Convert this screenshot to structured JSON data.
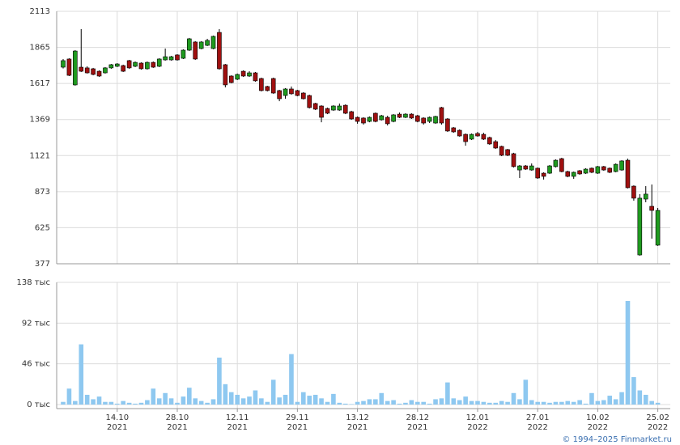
{
  "chart_data": {
    "type": "candlestick",
    "up_color": "#1f9a1f",
    "down_color": "#a01010",
    "grid": true,
    "open": [
      1729,
      1785,
      1607,
      1729,
      1724,
      1718,
      1701,
      1690,
      1724,
      1735,
      1740,
      1774,
      1735,
      1757,
      1718,
      1762,
      1735,
      1779,
      1779,
      1813,
      1790,
      1846,
      1902,
      1857,
      1879,
      1857,
      1968,
      1746,
      1668,
      1646,
      1701,
      1668,
      1690,
      1651,
      1596,
      1651,
      1568,
      1534,
      1579,
      1568,
      1551,
      1534,
      1479,
      1462,
      1445,
      1434,
      1434,
      1467,
      1423,
      1384,
      1379,
      1356,
      1412,
      1367,
      1384,
      1356,
      1406,
      1384,
      1406,
      1395,
      1379,
      1356,
      1345,
      1451,
      1373,
      1312,
      1295,
      1267,
      1234,
      1273,
      1267,
      1245,
      1217,
      1184,
      1162,
      1134,
      1022,
      1050,
      1022,
      1034,
      1000,
      1000,
      1045,
      1100,
      1011,
      978,
      1017,
      1000,
      1034,
      1000,
      1045,
      1034,
      1011,
      1022,
      1089,
      911,
      438,
      822,
      772,
      505
    ],
    "high": [
      1785,
      1790,
      1846,
      1991,
      1735,
      1724,
      1707,
      1729,
      1751,
      1757,
      1746,
      1779,
      1768,
      1762,
      1768,
      1768,
      1790,
      1857,
      1807,
      1818,
      1852,
      1930,
      1908,
      1908,
      1924,
      1946,
      1991,
      1751,
      1673,
      1685,
      1707,
      1701,
      1696,
      1657,
      1601,
      1657,
      1573,
      1585,
      1596,
      1573,
      1557,
      1540,
      1484,
      1467,
      1451,
      1467,
      1479,
      1473,
      1429,
      1390,
      1384,
      1390,
      1417,
      1401,
      1395,
      1406,
      1417,
      1412,
      1412,
      1401,
      1384,
      1390,
      1395,
      1456,
      1379,
      1317,
      1301,
      1273,
      1273,
      1284,
      1278,
      1251,
      1228,
      1189,
      1167,
      1140,
      1056,
      1056,
      1067,
      1039,
      1006,
      1056,
      1095,
      1106,
      1017,
      1011,
      1022,
      1034,
      1039,
      1050,
      1050,
      1039,
      1067,
      1089,
      1100,
      916,
      856,
      911,
      922,
      761
    ],
    "low": [
      1720,
      1668,
      1602,
      1696,
      1685,
      1673,
      1662,
      1685,
      1718,
      1729,
      1696,
      1718,
      1729,
      1712,
      1712,
      1724,
      1729,
      1774,
      1774,
      1774,
      1785,
      1840,
      1779,
      1852,
      1874,
      1852,
      1712,
      1590,
      1618,
      1640,
      1662,
      1662,
      1629,
      1562,
      1562,
      1546,
      1495,
      1512,
      1540,
      1529,
      1507,
      1445,
      1434,
      1350,
      1406,
      1429,
      1429,
      1406,
      1367,
      1340,
      1334,
      1350,
      1350,
      1362,
      1328,
      1350,
      1379,
      1379,
      1373,
      1350,
      1334,
      1345,
      1340,
      1334,
      1284,
      1278,
      1251,
      1189,
      1228,
      1251,
      1228,
      1195,
      1167,
      1117,
      1117,
      1039,
      967,
      1022,
      1017,
      961,
      956,
      995,
      1039,
      1006,
      972,
      961,
      989,
      995,
      1000,
      995,
      1017,
      1000,
      1006,
      1017,
      895,
      811,
      432,
      800,
      550,
      500
    ],
    "close": [
      1774,
      1673,
      1840,
      1701,
      1690,
      1679,
      1668,
      1724,
      1746,
      1751,
      1701,
      1724,
      1762,
      1718,
      1762,
      1729,
      1785,
      1801,
      1801,
      1779,
      1846,
      1924,
      1785,
      1902,
      1913,
      1941,
      1718,
      1607,
      1623,
      1679,
      1668,
      1690,
      1635,
      1568,
      1568,
      1551,
      1512,
      1579,
      1546,
      1534,
      1512,
      1451,
      1440,
      1384,
      1412,
      1462,
      1462,
      1412,
      1373,
      1356,
      1345,
      1384,
      1356,
      1395,
      1340,
      1401,
      1384,
      1406,
      1379,
      1356,
      1345,
      1384,
      1390,
      1345,
      1290,
      1284,
      1256,
      1217,
      1267,
      1256,
      1234,
      1201,
      1173,
      1123,
      1123,
      1045,
      1050,
      1028,
      1050,
      967,
      978,
      1050,
      1089,
      1011,
      978,
      1006,
      995,
      1028,
      1006,
      1045,
      1022,
      1006,
      1061,
      1084,
      900,
      828,
      828,
      856,
      744,
      744
    ],
    "ylim": [
      377,
      2113
    ],
    "yticks": [
      377,
      625,
      873,
      1121,
      1369,
      1617,
      1865,
      2113
    ],
    "volume": {
      "color": "#8ec8f0",
      "values": [
        3,
        18,
        4,
        68,
        11,
        6,
        9,
        3,
        3,
        1,
        4,
        2,
        1,
        2,
        5,
        18,
        7,
        13,
        7,
        2,
        9,
        19,
        7,
        4,
        2,
        6,
        53,
        23,
        14,
        11,
        7,
        9,
        16,
        7,
        3,
        28,
        8,
        11,
        57,
        3,
        14,
        10,
        11,
        7,
        3,
        12,
        2,
        1,
        0.5,
        3,
        4,
        6,
        6,
        13,
        4,
        5,
        1,
        2,
        5,
        3,
        3,
        1,
        6,
        7,
        25,
        7,
        5,
        9,
        4,
        4,
        3,
        2,
        2,
        4,
        3,
        13,
        6,
        28,
        5,
        3,
        3,
        2,
        3,
        3,
        4,
        3,
        5,
        1,
        13,
        4,
        5,
        10,
        6,
        14,
        117,
        31,
        16,
        11,
        4,
        2
      ],
      "ylim": [
        0,
        138
      ],
      "yticks": [
        {
          "value": 0,
          "label": "0 тыс"
        },
        {
          "value": 46,
          "label": "46 тыс"
        },
        {
          "value": 92,
          "label": "92 тыс"
        },
        {
          "value": 138,
          "label": "138 тыс"
        }
      ]
    },
    "xticks": [
      {
        "value": 9,
        "label": "14.10",
        "year": "2021"
      },
      {
        "value": 19,
        "label": "28.10",
        "year": "2021"
      },
      {
        "value": 29,
        "label": "12.11",
        "year": "2021"
      },
      {
        "value": 39,
        "label": "29.11",
        "year": "2021"
      },
      {
        "value": 49,
        "label": "13.12",
        "year": "2021"
      },
      {
        "value": 59,
        "label": "28.12",
        "year": "2021"
      },
      {
        "value": 69,
        "label": "12.01",
        "year": "2022"
      },
      {
        "value": 79,
        "label": "27.01",
        "year": "2022"
      },
      {
        "value": 89,
        "label": "10.02",
        "year": "2022"
      },
      {
        "value": 99,
        "label": "25.02",
        "year": "2022"
      }
    ]
  },
  "credit": "© 1994–2025 Finmarket.ru"
}
